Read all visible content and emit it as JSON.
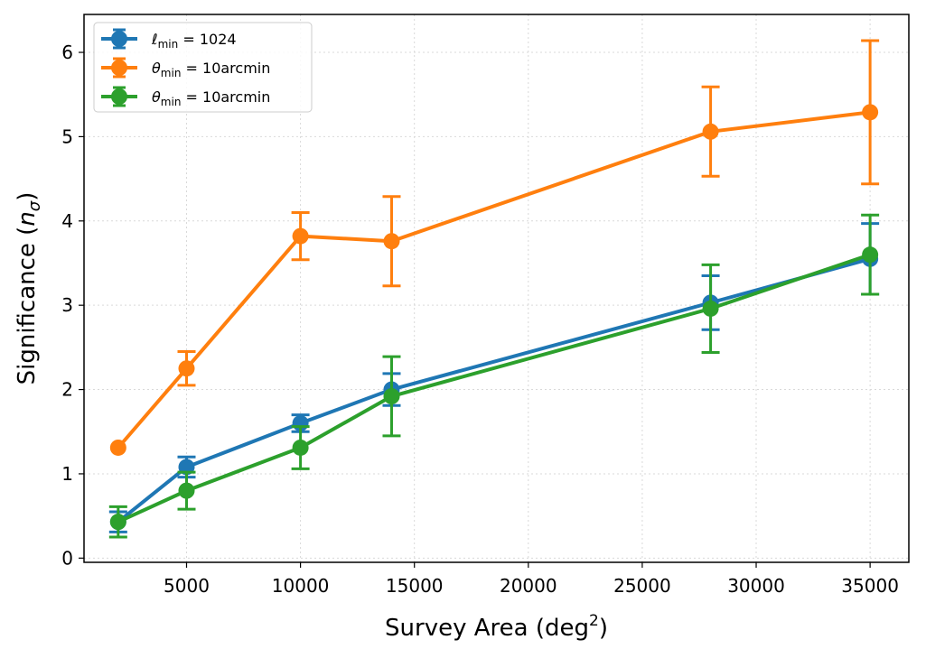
{
  "chart_data": {
    "type": "line",
    "title": "",
    "xlabel": "Survey Area (deg",
    "xlabel_sup": "2",
    "xlabel_end": ")",
    "ylabel": "Significance (",
    "ylabel_var": "n",
    "ylabel_sub": "σ",
    "ylabel_end": ")",
    "xlim": [
      500,
      36700
    ],
    "ylim": [
      -0.05,
      6.45
    ],
    "xticks": [
      5000,
      10000,
      15000,
      20000,
      25000,
      30000,
      35000
    ],
    "yticks": [
      0,
      1,
      2,
      3,
      4,
      5,
      6
    ],
    "grid": true,
    "legend_position": "top-left",
    "series": [
      {
        "name": "ℓmin = 1024",
        "legend_symbol": "ℓ",
        "legend_sub": "min",
        "legend_rest": " = 1024",
        "color": "#1f77b4",
        "x": [
          2000,
          5000,
          10000,
          14000,
          28000,
          35000
        ],
        "y": [
          0.43,
          1.08,
          1.6,
          2.0,
          3.03,
          3.55
        ],
        "yerr": [
          0.12,
          0.12,
          0.1,
          0.19,
          0.32,
          0.42
        ]
      },
      {
        "name": "θmin = 10arcmin",
        "legend_symbol": "θ",
        "legend_sub": "min",
        "legend_rest": " = 10arcmin",
        "color": "#ff7f0e",
        "x": [
          2000,
          5000,
          10000,
          14000,
          28000,
          35000
        ],
        "y": [
          1.31,
          2.25,
          3.82,
          3.76,
          5.06,
          5.29
        ],
        "yerr": [
          0.0,
          0.2,
          0.28,
          0.53,
          0.53,
          0.85
        ]
      },
      {
        "name": "θmin = 10arcmin",
        "legend_symbol": "θ",
        "legend_sub": "min",
        "legend_rest": " = 10arcmin",
        "color": "#2ca02c",
        "x": [
          2000,
          5000,
          10000,
          14000,
          28000,
          35000
        ],
        "y": [
          0.43,
          0.8,
          1.31,
          1.92,
          2.96,
          3.6
        ],
        "yerr": [
          0.18,
          0.22,
          0.25,
          0.47,
          0.52,
          0.47
        ]
      }
    ]
  }
}
